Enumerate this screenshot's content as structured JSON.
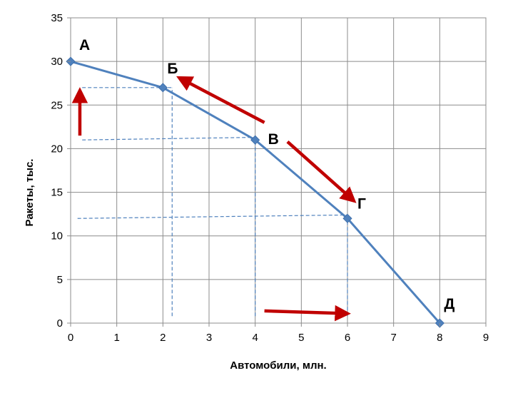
{
  "chart_data": {
    "type": "line",
    "title": "",
    "xlabel": "Автомобили, млн.",
    "ylabel": "Ракеты, тыс.",
    "xlim": [
      0,
      9
    ],
    "ylim": [
      0,
      35
    ],
    "x_ticks": [
      "0",
      "1",
      "2",
      "3",
      "4",
      "5",
      "6",
      "7",
      "8",
      "9"
    ],
    "y_ticks": [
      "0",
      "5",
      "10",
      "15",
      "20",
      "25",
      "30",
      "35"
    ],
    "grid": true,
    "legend": "none",
    "series": [
      {
        "points": [
          {
            "x": 0,
            "y": 30,
            "label": "А"
          },
          {
            "x": 2,
            "y": 27,
            "label": "Б"
          },
          {
            "x": 4,
            "y": 21,
            "label": "В"
          },
          {
            "x": 6,
            "y": 12,
            "label": "Г"
          },
          {
            "x": 8,
            "y": 0,
            "label": "Д"
          }
        ],
        "color": "#4F81BD"
      }
    ],
    "dashed_guides": [
      {
        "from": [
          0.25,
          27
        ],
        "to": [
          2.2,
          27
        ]
      },
      {
        "from": [
          0.25,
          21
        ],
        "to": [
          4,
          21.3
        ]
      },
      {
        "from": [
          0.15,
          12
        ],
        "to": [
          6,
          12.4
        ]
      },
      {
        "from": [
          2.2,
          0.8
        ],
        "to": [
          2.2,
          27
        ]
      },
      {
        "from": [
          4,
          0.8
        ],
        "to": [
          4,
          21
        ]
      },
      {
        "from": [
          6,
          0.8
        ],
        "to": [
          6,
          12
        ]
      }
    ],
    "annotation_arrows": [
      {
        "from": [
          0.2,
          21.5
        ],
        "to": [
          0.2,
          26.4
        ]
      },
      {
        "from": [
          4.2,
          23
        ],
        "to": [
          2.4,
          28
        ]
      },
      {
        "from": [
          4.7,
          20.8
        ],
        "to": [
          6.1,
          14.2
        ]
      },
      {
        "from": [
          4.2,
          1.4
        ],
        "to": [
          5.95,
          1.1
        ]
      }
    ],
    "guide_color": "#4F81BD",
    "arrow_color": "#C00000"
  }
}
